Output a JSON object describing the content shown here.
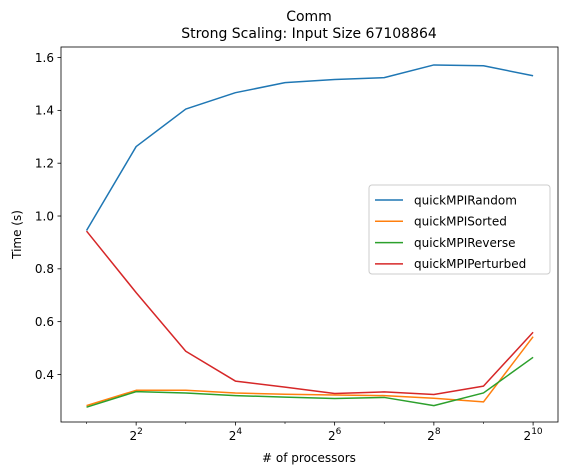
{
  "chart_data": {
    "type": "line",
    "title": "Comm",
    "subtitle": "Strong Scaling: Input Size 67108864",
    "xlabel": "# of processors",
    "ylabel": "Time (s)",
    "xscale": "log2",
    "x": [
      2,
      4,
      8,
      16,
      32,
      64,
      128,
      256,
      512,
      1024
    ],
    "xlim": [
      1.4,
      1450
    ],
    "ylim": [
      0.22,
      1.64
    ],
    "xticks": [
      {
        "value": 4,
        "base": "2",
        "exp": "2"
      },
      {
        "value": 16,
        "base": "2",
        "exp": "4"
      },
      {
        "value": 64,
        "base": "2",
        "exp": "6"
      },
      {
        "value": 256,
        "base": "2",
        "exp": "8"
      },
      {
        "value": 1024,
        "base": "2",
        "exp": "10"
      }
    ],
    "yticks": [
      {
        "value": 0.4,
        "label": "0.4"
      },
      {
        "value": 0.6,
        "label": "0.6"
      },
      {
        "value": 0.8,
        "label": "0.8"
      },
      {
        "value": 1.0,
        "label": "1.0"
      },
      {
        "value": 1.2,
        "label": "1.2"
      },
      {
        "value": 1.4,
        "label": "1.4"
      },
      {
        "value": 1.6,
        "label": "1.6"
      }
    ],
    "grid": false,
    "legend_position": "center-right",
    "series": [
      {
        "name": "quickMPIRandom",
        "color": "#1f77b4",
        "values": [
          0.945,
          1.263,
          1.405,
          1.467,
          1.505,
          1.517,
          1.524,
          1.572,
          1.569,
          1.531
        ]
      },
      {
        "name": "quickMPISorted",
        "color": "#ff7f0e",
        "values": [
          0.282,
          0.34,
          0.34,
          0.33,
          0.325,
          0.322,
          0.32,
          0.31,
          0.296,
          0.543
        ]
      },
      {
        "name": "quickMPIReverse",
        "color": "#2ca02c",
        "values": [
          0.276,
          0.335,
          0.33,
          0.32,
          0.314,
          0.309,
          0.313,
          0.282,
          0.33,
          0.465
        ]
      },
      {
        "name": "quickMPIPerturbed",
        "color": "#d62728",
        "values": [
          0.943,
          0.71,
          0.488,
          0.375,
          0.352,
          0.328,
          0.334,
          0.324,
          0.356,
          0.56
        ]
      }
    ]
  }
}
